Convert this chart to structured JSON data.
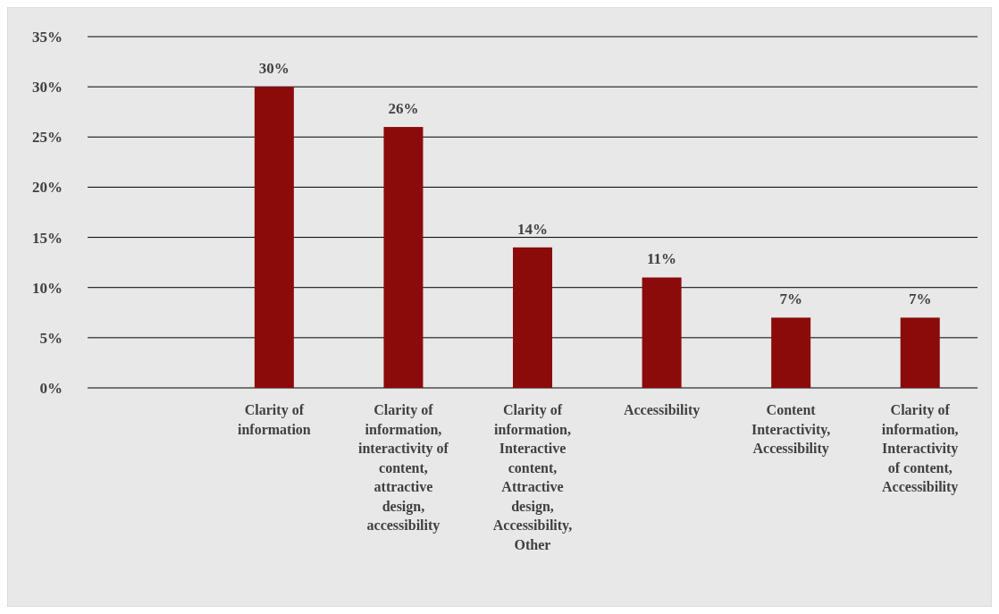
{
  "chart_data": {
    "type": "bar",
    "categories": [
      null,
      "Clarity of information",
      "Clarity of information, interactivity of content, attractive design, accessibility",
      "Clarity of information, Interactive content, Attractive design, Accessibility, Other",
      "Accessibility",
      "Content Interactivity, Accessibility",
      "Clarity of information, Interactivity of content, Accessibility"
    ],
    "values": [
      null,
      30,
      26,
      14,
      11,
      7,
      7
    ],
    "color": "#8b0a0a",
    "ylim": [
      0,
      35
    ],
    "yticks": [
      {
        "value": 0,
        "label": "0%"
      },
      {
        "value": 5,
        "label": "5%"
      },
      {
        "value": 10,
        "label": "10%"
      },
      {
        "value": 15,
        "label": "15%"
      },
      {
        "value": 20,
        "label": "20%"
      },
      {
        "value": 25,
        "label": "25%"
      },
      {
        "value": 30,
        "label": "30%"
      },
      {
        "value": 35,
        "label": "35%"
      }
    ],
    "grid": "y",
    "value_labels": [
      null,
      "30%",
      "26%",
      "14%",
      "11%",
      "7%",
      "7%"
    ]
  }
}
